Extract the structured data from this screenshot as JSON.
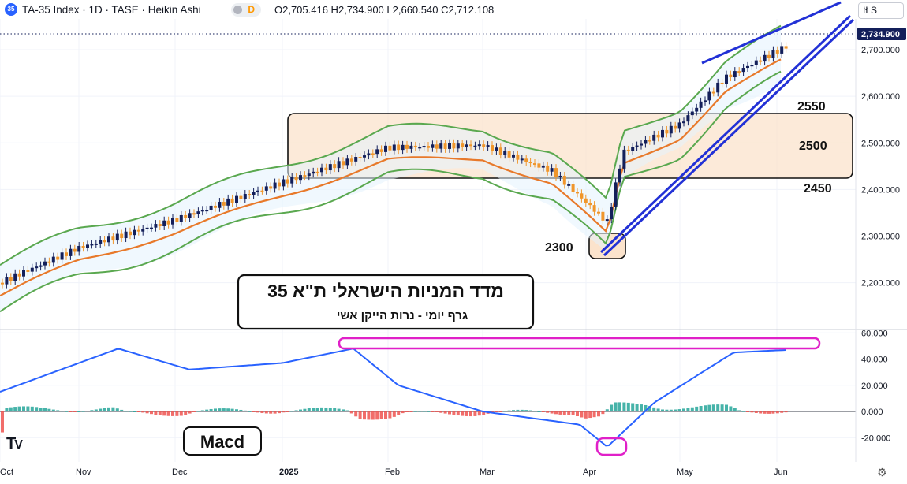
{
  "header": {
    "symbol_badge": "35",
    "title": "TA-35 Index · 1D · TASE · Heikin Ashi",
    "toggle_letter": "D",
    "ohlc": "O2,705.416  H2,734.900  L2,660.540  C2,712.108"
  },
  "currency": {
    "label": "ILS",
    "chevron": "⌄"
  },
  "icons": {
    "logo": "tradingview-logo-icon",
    "settings": "gear-icon"
  },
  "price_tag": "2,734.900",
  "price_axis": {
    "labels": [
      "2,700.000",
      "2,600.000",
      "2,500.000",
      "2,400.000",
      "2,300.000",
      "2,200.000"
    ]
  },
  "macd_axis": {
    "labels": [
      "60.000",
      "40.000",
      "20.000",
      "0.000",
      "-20.000"
    ]
  },
  "time_axis": {
    "labels": [
      "Oct",
      "Nov",
      "Dec",
      "2025",
      "Feb",
      "Mar",
      "Apr",
      "May",
      "Jun"
    ]
  },
  "annotations": {
    "level_2550": "2550",
    "level_2500": "2500",
    "level_2450": "2450",
    "level_2300": "2300",
    "title_main": "מדד המניות הישראלי ת\"א 35",
    "title_sub": "גרף  יומי   -  נרות הייקן אשי",
    "macd_label": "Macd"
  },
  "colors": {
    "bull": "#131f5a",
    "bear": "#f0962b",
    "band": "#5aa84f",
    "ma": "#e8792a",
    "trend": "#2231d6",
    "zone_fill": "#fbe3cc",
    "hist_pos": "#26a69a",
    "hist_neg": "#ef5350",
    "macd_line": "#2962ff",
    "highlight": "#e020c8"
  },
  "chart_data": [
    {
      "type": "candlestick",
      "chart_style": "Heikin Ashi",
      "interval": "1D",
      "ylim": [
        2180,
        2760
      ],
      "last_price": 2734.9,
      "x_ticks": [
        "Oct",
        "Nov",
        "Dec",
        "2025",
        "Feb",
        "Mar",
        "Apr",
        "May",
        "Jun"
      ],
      "price_path": [
        [
          "Oct",
          2200
        ],
        [
          "Nov",
          2275
        ],
        [
          "Dec",
          2335
        ],
        [
          "2025",
          2415
        ],
        [
          "Feb",
          2490
        ],
        [
          "Mar",
          2495
        ],
        [
          "Apr",
          2440
        ],
        [
          "Apr",
          2330
        ],
        [
          "Apr",
          2480
        ],
        [
          "May",
          2540
        ],
        [
          "May",
          2640
        ],
        [
          "Jun",
          2710
        ]
      ],
      "indicators": [
        "moving average (orange)",
        "upper/lower bands (green)"
      ],
      "levels": [
        2550,
        2500,
        2450,
        2300
      ]
    },
    {
      "type": "line",
      "indicator": "MACD",
      "ylim": [
        -30,
        60
      ],
      "macd_path": [
        [
          "Oct",
          15
        ],
        [
          "Nov",
          48
        ],
        [
          "Dec",
          32
        ],
        [
          "2025",
          37
        ],
        [
          "Feb",
          48
        ],
        [
          "Feb",
          20
        ],
        [
          "Mar",
          0
        ],
        [
          "Apr",
          -10
        ],
        [
          "Apr",
          -27
        ],
        [
          "May",
          7
        ],
        [
          "May",
          45
        ],
        [
          "Jun",
          47
        ]
      ]
    }
  ]
}
